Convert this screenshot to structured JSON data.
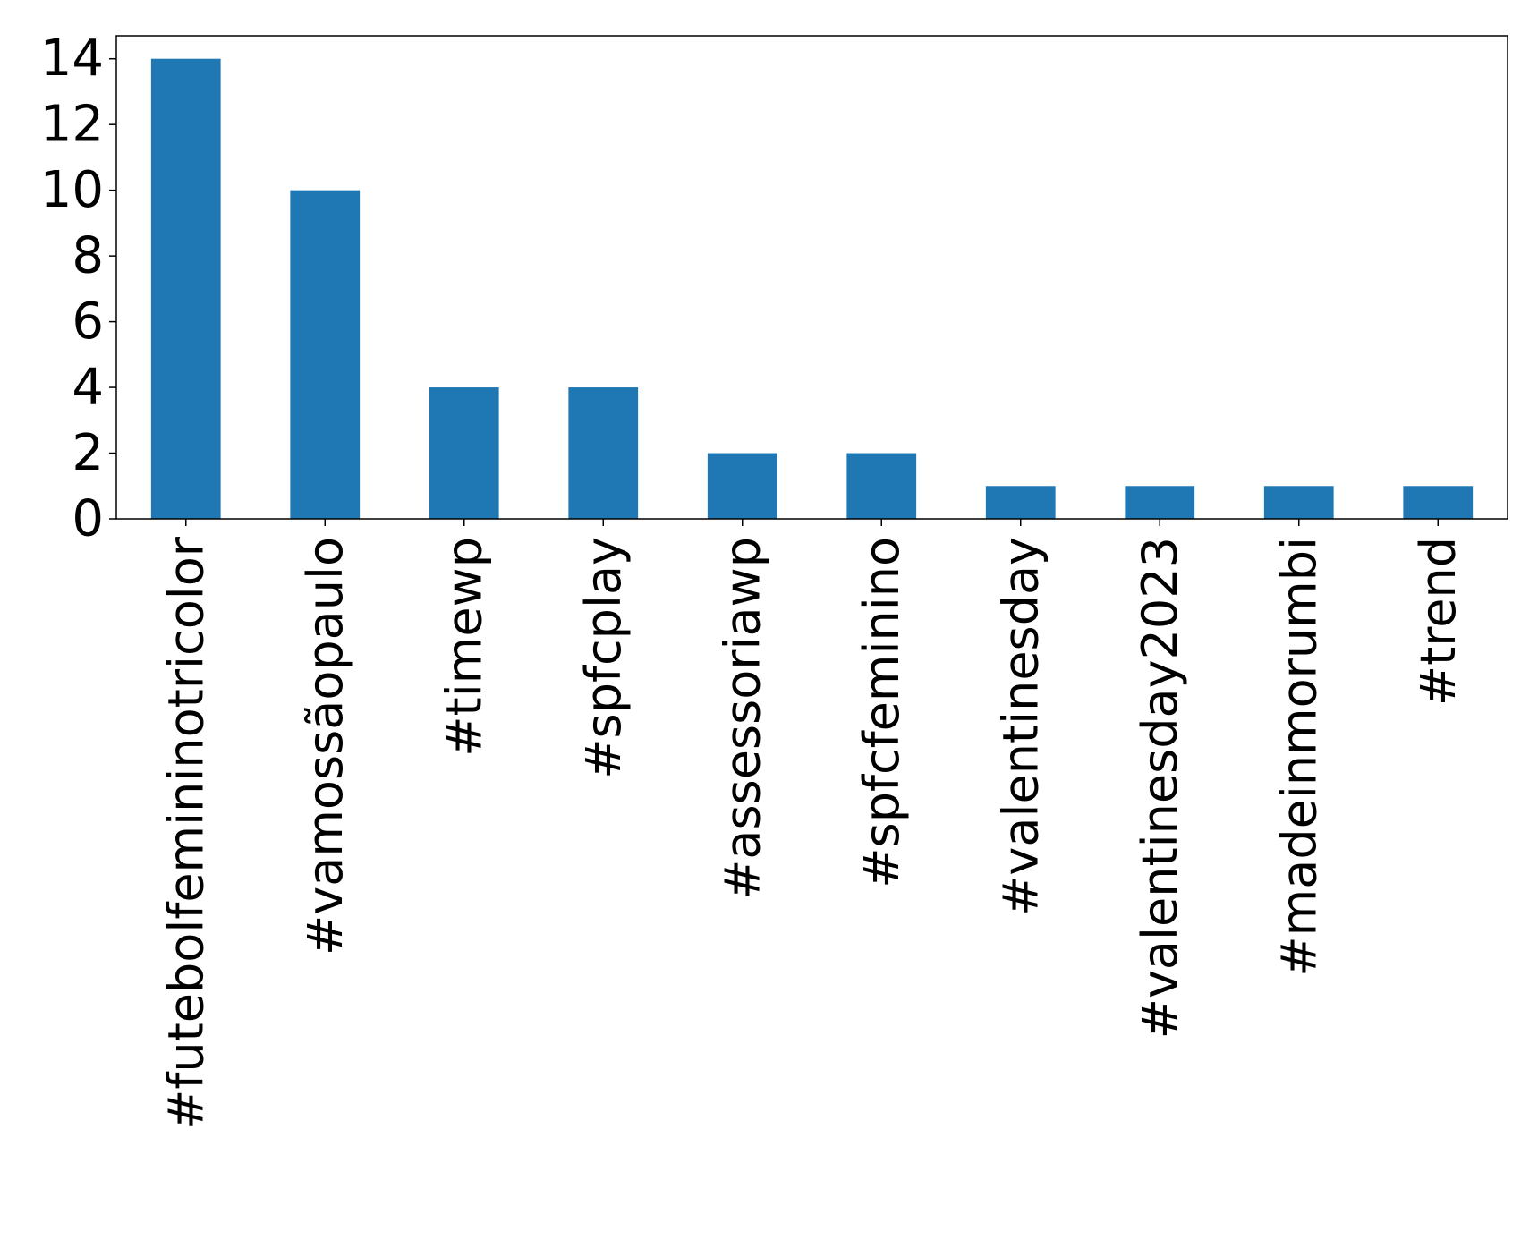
{
  "chart_data": {
    "type": "bar",
    "title": "",
    "xlabel": "",
    "ylabel": "",
    "categories": [
      "#futebolfemininotricolor",
      "#vamossãopaulo",
      "#timewp",
      "#spfcplay",
      "#assessoriawp",
      "#spfcfeminino",
      "#valentinesday",
      "#valentinesday2023",
      "#madeinmorumbi",
      "#trend"
    ],
    "values": [
      14,
      10,
      4,
      4,
      2,
      2,
      1,
      1,
      1,
      1
    ],
    "ylim": [
      0,
      14.7
    ],
    "yticks": [
      0,
      2,
      4,
      6,
      8,
      10,
      12,
      14
    ],
    "grid": false,
    "legend": "none",
    "bar_color": "#1f77b4"
  }
}
